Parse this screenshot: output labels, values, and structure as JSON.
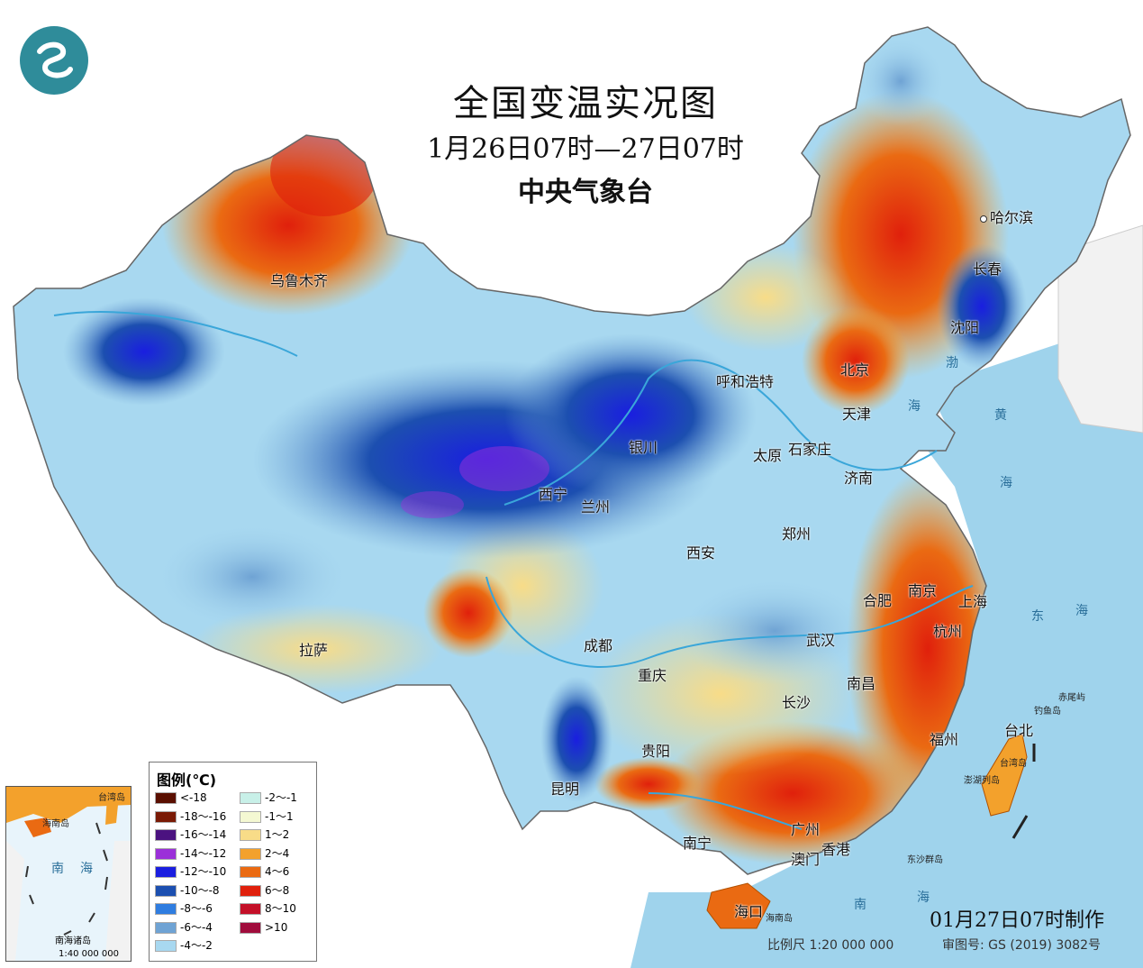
{
  "title": "全国变温实况图",
  "subtitle": "1月26日07时—27日07时",
  "org": "中央气象台",
  "issued": "01月27日07时制作",
  "scale_note": "比例尺  1:20 000 000",
  "approval": "审图号: GS (2019) 3082号",
  "legend": {
    "title": "图例(℃)",
    "items": [
      {
        "label": "<-18",
        "color": "#5a0f00"
      },
      {
        "label": "-18～-16",
        "color": "#7a1a05"
      },
      {
        "label": "-16～-14",
        "color": "#4b1280"
      },
      {
        "label": "-14～-12",
        "color": "#9b30d9"
      },
      {
        "label": "-12～-10",
        "color": "#1a1ee0"
      },
      {
        "label": "-10～-8",
        "color": "#1c4fb0"
      },
      {
        "label": "-8～-6",
        "color": "#2f7de0"
      },
      {
        "label": "-6～-4",
        "color": "#6fa3d4"
      },
      {
        "label": "-4～-2",
        "color": "#a8d8f0"
      },
      {
        "label": "-2～-1",
        "color": "#c8f0e8"
      },
      {
        "label": "-1～1",
        "color": "#f4f8d2"
      },
      {
        "label": "1～2",
        "color": "#f8dc88"
      },
      {
        "label": "2～4",
        "color": "#f3a12c"
      },
      {
        "label": "4～6",
        "color": "#ea6a12"
      },
      {
        "label": "6～8",
        "color": "#e0200c"
      },
      {
        "label": "8～10",
        "color": "#c41028"
      },
      {
        "label": ">10",
        "color": "#a00c3c"
      }
    ]
  },
  "cities": [
    {
      "name": "乌鲁木齐"
    },
    {
      "name": "哈尔滨"
    },
    {
      "name": "长春"
    },
    {
      "name": "沈阳"
    },
    {
      "name": "呼和浩特"
    },
    {
      "name": "北京"
    },
    {
      "name": "天津"
    },
    {
      "name": "银川"
    },
    {
      "name": "太原"
    },
    {
      "name": "石家庄"
    },
    {
      "name": "济南"
    },
    {
      "name": "西宁"
    },
    {
      "name": "兰州"
    },
    {
      "name": "郑州"
    },
    {
      "name": "西安"
    },
    {
      "name": "合肥"
    },
    {
      "name": "南京"
    },
    {
      "name": "上海"
    },
    {
      "name": "杭州"
    },
    {
      "name": "拉萨"
    },
    {
      "name": "成都"
    },
    {
      "name": "武汉"
    },
    {
      "name": "重庆"
    },
    {
      "name": "南昌"
    },
    {
      "name": "长沙"
    },
    {
      "name": "福州"
    },
    {
      "name": "台北"
    },
    {
      "name": "贵阳"
    },
    {
      "name": "昆明"
    },
    {
      "name": "广州"
    },
    {
      "name": "南宁"
    },
    {
      "name": "澳门"
    },
    {
      "name": "香港"
    },
    {
      "name": "海口"
    }
  ],
  "seas": [
    "渤",
    "海",
    "黄",
    "海",
    "东",
    "海",
    "南",
    "海"
  ],
  "islands": [
    "赤尾屿",
    "钓鱼岛",
    "台湾岛",
    "澎湖列岛",
    "东沙群岛",
    "海南岛"
  ],
  "inset": {
    "labels": [
      "海南岛",
      "南",
      "海",
      "台湾岛"
    ],
    "title": "南海诸岛",
    "scale": "1:40 000 000"
  }
}
